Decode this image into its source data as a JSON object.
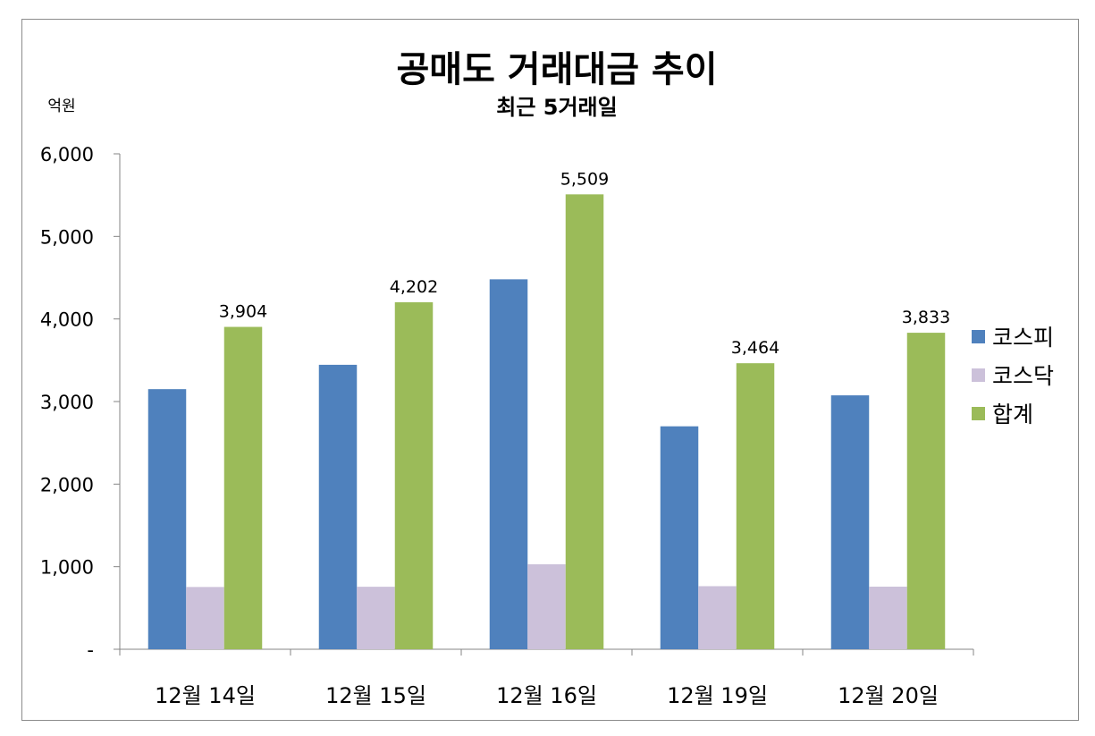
{
  "chart_data": {
    "type": "bar",
    "title": "공매도 거래대금 추이",
    "subtitle": "최근 5거래일",
    "ylabel": "억원",
    "xlabel": "",
    "categories": [
      "12월 14일",
      "12월 15일",
      "12월 16일",
      "12월 19일",
      "12월 20일"
    ],
    "series": [
      {
        "name": "코스피",
        "color": "#4f81bd",
        "values": [
          3150,
          3445,
          4480,
          2700,
          3075
        ]
      },
      {
        "name": "코스닥",
        "color": "#ccc1da",
        "values": [
          754,
          757,
          1029,
          764,
          758
        ]
      },
      {
        "name": "합계",
        "color": "#9bbb59",
        "values": [
          3904,
          4202,
          5509,
          3464,
          3833
        ]
      }
    ],
    "data_labels": {
      "series": "합계",
      "values": [
        "3,904",
        "4,202",
        "5,509",
        "3,464",
        "3,833"
      ]
    },
    "ylim": [
      0,
      6000
    ],
    "yticks": [
      0,
      1000,
      2000,
      3000,
      4000,
      5000,
      6000
    ],
    "ytick_labels": [
      "-",
      "1,000",
      "2,000",
      "3,000",
      "4,000",
      "5,000",
      "6,000"
    ],
    "grid": false,
    "legend_position": "right"
  }
}
